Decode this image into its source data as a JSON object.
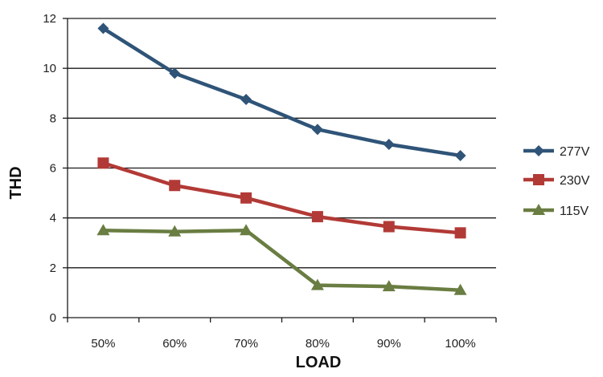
{
  "chart_data": {
    "type": "line",
    "title": "",
    "xlabel": "LOAD",
    "ylabel": "THD",
    "categories": [
      "50%",
      "60%",
      "70%",
      "80%",
      "90%",
      "100%"
    ],
    "ylim": [
      0,
      12
    ],
    "yticks": [
      0,
      2,
      4,
      6,
      8,
      10,
      12
    ],
    "grid": true,
    "legend_position": "right",
    "series": [
      {
        "name": "277V",
        "color": "#2f5478",
        "marker": "diamond",
        "values": [
          11.6,
          9.8,
          8.75,
          7.55,
          6.95,
          6.5
        ]
      },
      {
        "name": "230V",
        "color": "#b23a36",
        "marker": "square",
        "values": [
          6.2,
          5.3,
          4.8,
          4.05,
          3.65,
          3.4
        ]
      },
      {
        "name": "115V",
        "color": "#6a7d42",
        "marker": "triangle",
        "values": [
          3.5,
          3.45,
          3.5,
          1.3,
          1.25,
          1.1
        ]
      }
    ]
  }
}
